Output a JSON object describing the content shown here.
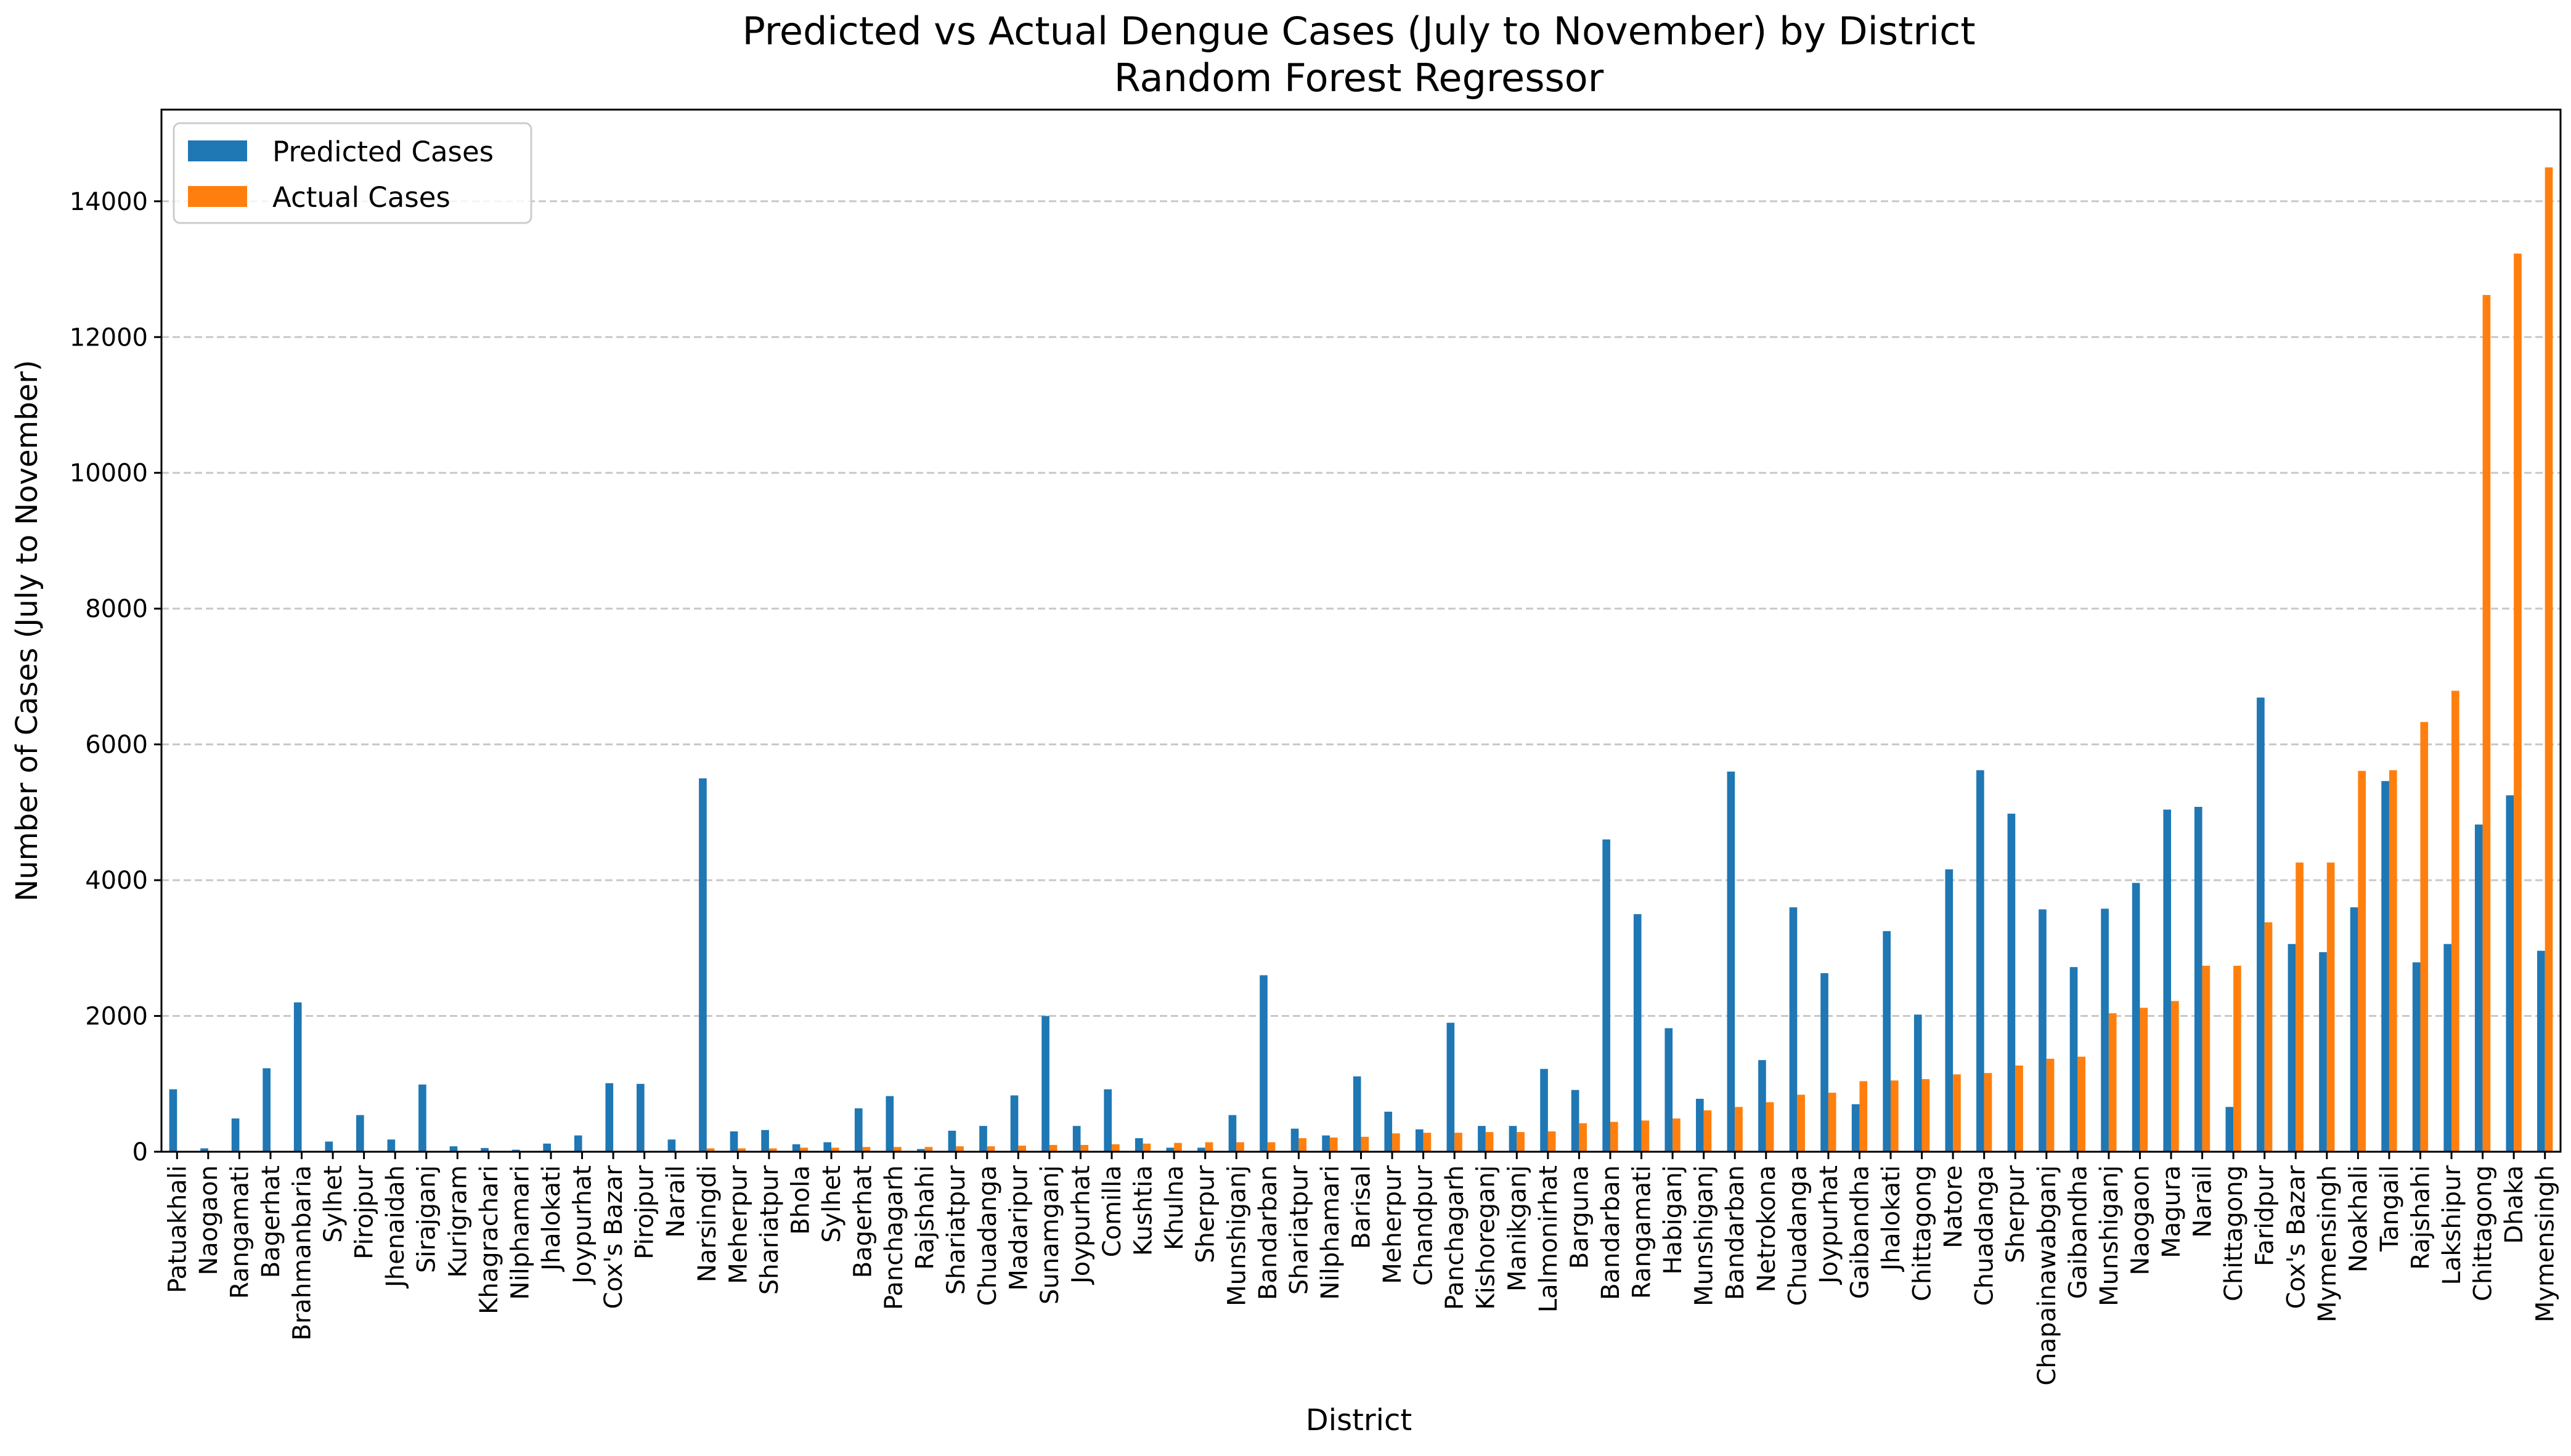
{
  "chart_data": {
    "type": "bar",
    "title": "Predicted vs Actual Dengue Cases (July to November) by District",
    "subtitle": "Random Forest Regressor",
    "xlabel": "District",
    "ylabel": "Number of Cases (July to November)",
    "ylim": [
      0,
      15350
    ],
    "yticks": [
      0,
      2000,
      4000,
      6000,
      8000,
      10000,
      12000,
      14000
    ],
    "grid": "y-dashed",
    "legend_position": "top-left",
    "categories": [
      "Patuakhali",
      "Naogaon",
      "Rangamati",
      "Bagerhat",
      "Brahmanbaria",
      "Sylhet",
      "Pirojpur",
      "Jhenaidah",
      "Sirajganj",
      "Kurigram",
      "Khagrachari",
      "Nilphamari",
      "Jhalokati",
      "Joypurhat",
      "Cox's Bazar",
      "Pirojpur",
      "Narail",
      "Narsingdi",
      "Meherpur",
      "Shariatpur",
      "Bhola",
      "Sylhet",
      "Bagerhat",
      "Panchagarh",
      "Rajshahi",
      "Shariatpur",
      "Chuadanga",
      "Madaripur",
      "Sunamganj",
      "Joypurhat",
      "Comilla",
      "Kushtia",
      "Khulna",
      "Sherpur",
      "Munshiganj",
      "Bandarban",
      "Shariatpur",
      "Nilphamari",
      "Barisal",
      "Meherpur",
      "Chandpur",
      "Panchagarh",
      "Kishoreganj",
      "Manikganj",
      "Lalmonirhat",
      "Barguna",
      "Bandarban",
      "Rangamati",
      "Habiganj",
      "Munshiganj",
      "Bandarban",
      "Netrokona",
      "Chuadanga",
      "Joypurhat",
      "Gaibandha",
      "Jhalokati",
      "Chittagong",
      "Natore",
      "Chuadanga",
      "Sherpur",
      "Chapainawabganj",
      "Gaibandha",
      "Munshiganj",
      "Naogaon",
      "Magura",
      "Narail",
      "Chittagong",
      "Faridpur",
      "Cox's Bazar",
      "Mymensingh",
      "Noakhali",
      "Tangail",
      "Rajshahi",
      "Lakshipur",
      "Chittagong",
      "Dhaka",
      "Mymensingh"
    ],
    "series": [
      {
        "name": "Predicted Cases",
        "color": "#1f77b4",
        "values": [
          920,
          50,
          490,
          1230,
          2200,
          150,
          540,
          180,
          990,
          80,
          55,
          30,
          120,
          240,
          1010,
          1000,
          180,
          5500,
          300,
          320,
          110,
          140,
          640,
          820,
          40,
          310,
          380,
          830,
          2000,
          380,
          920,
          200,
          60,
          60,
          540,
          2600,
          340,
          240,
          1110,
          590,
          330,
          1900,
          380,
          380,
          1220,
          910,
          4600,
          3500,
          1820,
          780,
          5600,
          1350,
          3600,
          2630,
          700,
          3250,
          2020,
          4160,
          5620,
          4980,
          3570,
          2720,
          3580,
          3960,
          5040,
          5080,
          660,
          6690,
          3060,
          2940,
          3600,
          5460,
          2790,
          3060,
          4820,
          5250,
          2960
        ]
      },
      {
        "name": "Actual Cases",
        "color": "#ff7f0e",
        "values": [
          0,
          0,
          0,
          0,
          0,
          0,
          0,
          0,
          0,
          0,
          0,
          0,
          0,
          0,
          0,
          0,
          0,
          50,
          50,
          50,
          60,
          60,
          70,
          70,
          70,
          80,
          80,
          90,
          100,
          100,
          110,
          120,
          130,
          140,
          140,
          140,
          200,
          210,
          220,
          270,
          280,
          280,
          290,
          290,
          300,
          420,
          440,
          460,
          490,
          610,
          660,
          730,
          840,
          870,
          1040,
          1050,
          1070,
          1140,
          1160,
          1270,
          1370,
          1400,
          2040,
          2120,
          2220,
          2740,
          2740,
          3380,
          4260,
          4260,
          5610,
          5620,
          6330,
          6790,
          12620,
          13230,
          14500
        ]
      }
    ]
  }
}
